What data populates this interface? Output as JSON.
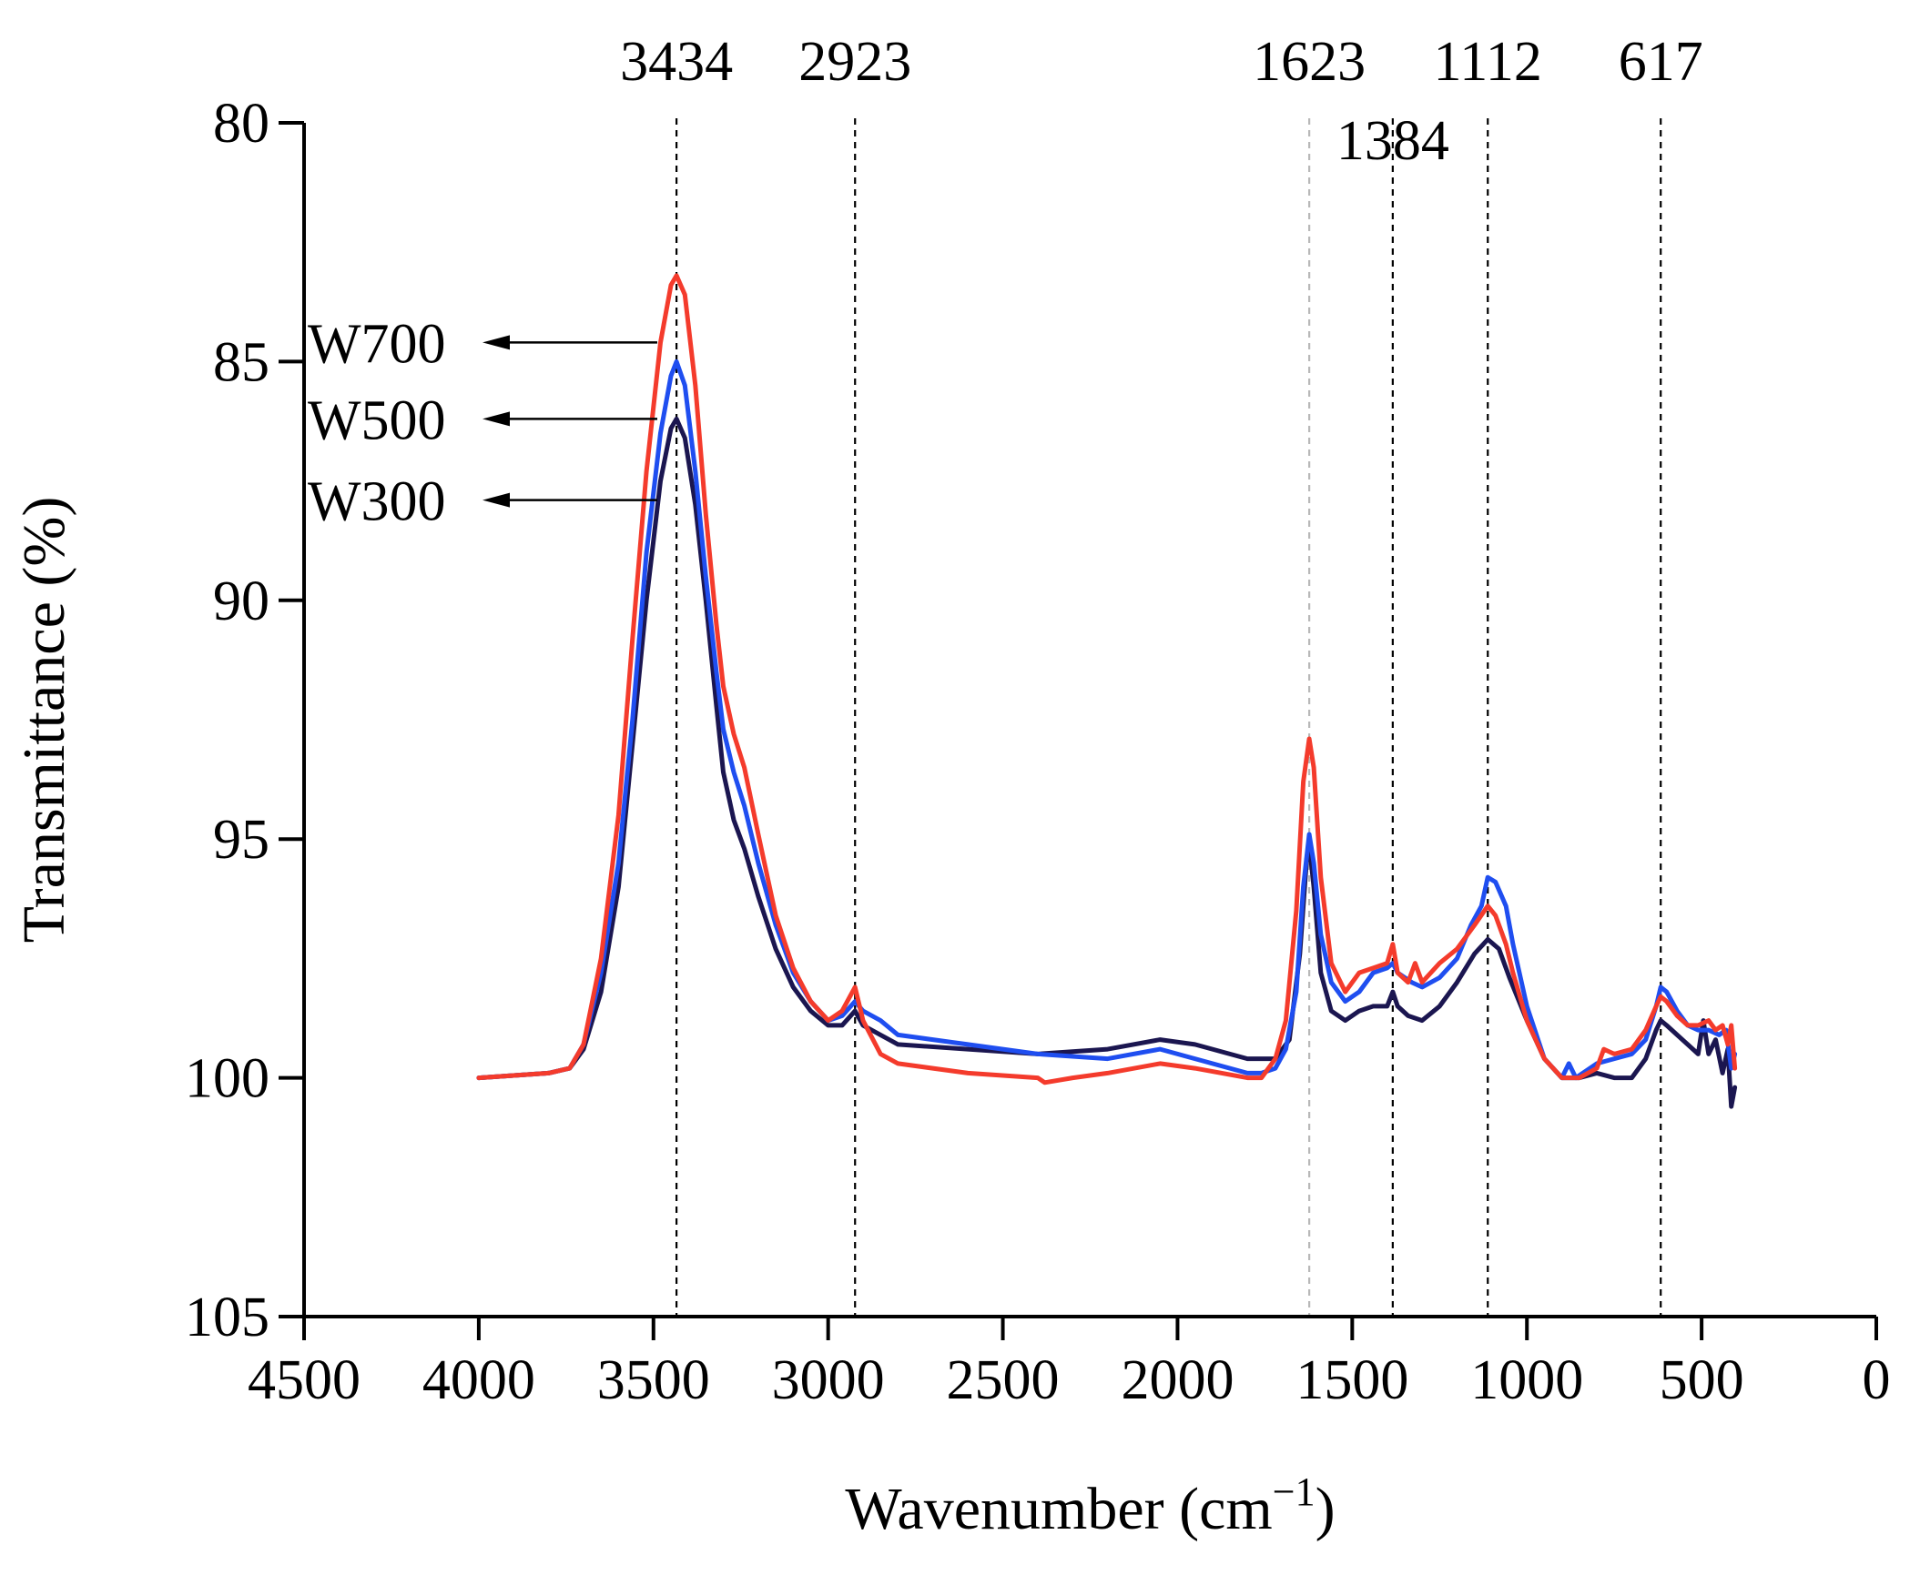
{
  "chart_data": {
    "type": "line",
    "title": "",
    "xlabel_main": "Wavenumber (cm",
    "xlabel_sup": "−1",
    "xlabel_close": ")",
    "ylabel": "Transmittance (%)",
    "xlim": [
      4500,
      0
    ],
    "ylim": [
      80,
      105
    ],
    "y_inverted": true,
    "x_ticks": [
      4500,
      4000,
      3500,
      3000,
      2500,
      2000,
      1500,
      1000,
      500,
      0
    ],
    "y_ticks": [
      80,
      85,
      90,
      95,
      100,
      105
    ],
    "peaks": [
      {
        "label": "3434",
        "x": 3434,
        "style": "dark"
      },
      {
        "label": "2923",
        "x": 2923,
        "style": "dark"
      },
      {
        "label": "1623",
        "x": 1623,
        "style": "light"
      },
      {
        "label": "1384",
        "x": 1384,
        "style": "dark"
      },
      {
        "label": "1112",
        "x": 1112,
        "style": "dark"
      },
      {
        "label": "617",
        "x": 617,
        "style": "dark"
      }
    ],
    "series": [
      {
        "name": "W300",
        "color": "#1b1650",
        "label_y": 87.9,
        "points": [
          [
            4000,
            100.0
          ],
          [
            3800,
            99.9
          ],
          [
            3740,
            99.8
          ],
          [
            3700,
            99.4
          ],
          [
            3650,
            98.2
          ],
          [
            3600,
            96.0
          ],
          [
            3560,
            93.0
          ],
          [
            3520,
            90.0
          ],
          [
            3480,
            87.5
          ],
          [
            3450,
            86.4
          ],
          [
            3434,
            86.2
          ],
          [
            3410,
            86.6
          ],
          [
            3380,
            88.0
          ],
          [
            3350,
            90.0
          ],
          [
            3320,
            92.2
          ],
          [
            3300,
            93.6
          ],
          [
            3270,
            94.6
          ],
          [
            3240,
            95.2
          ],
          [
            3200,
            96.2
          ],
          [
            3150,
            97.3
          ],
          [
            3100,
            98.1
          ],
          [
            3050,
            98.6
          ],
          [
            3000,
            98.9
          ],
          [
            2960,
            98.9
          ],
          [
            2923,
            98.6
          ],
          [
            2900,
            98.9
          ],
          [
            2850,
            99.1
          ],
          [
            2800,
            99.3
          ],
          [
            2600,
            99.4
          ],
          [
            2400,
            99.5
          ],
          [
            2200,
            99.4
          ],
          [
            2050,
            99.2
          ],
          [
            1950,
            99.3
          ],
          [
            1800,
            99.6
          ],
          [
            1720,
            99.6
          ],
          [
            1680,
            99.2
          ],
          [
            1650,
            97.4
          ],
          [
            1630,
            95.4
          ],
          [
            1623,
            95.1
          ],
          [
            1610,
            96.0
          ],
          [
            1590,
            97.8
          ],
          [
            1560,
            98.6
          ],
          [
            1520,
            98.8
          ],
          [
            1480,
            98.6
          ],
          [
            1440,
            98.5
          ],
          [
            1400,
            98.5
          ],
          [
            1384,
            98.2
          ],
          [
            1370,
            98.5
          ],
          [
            1340,
            98.7
          ],
          [
            1300,
            98.8
          ],
          [
            1250,
            98.5
          ],
          [
            1200,
            98.0
          ],
          [
            1150,
            97.4
          ],
          [
            1112,
            97.1
          ],
          [
            1080,
            97.3
          ],
          [
            1050,
            97.9
          ],
          [
            1000,
            98.8
          ],
          [
            950,
            99.6
          ],
          [
            900,
            100.0
          ],
          [
            850,
            100.0
          ],
          [
            800,
            99.9
          ],
          [
            750,
            100.0
          ],
          [
            700,
            100.0
          ],
          [
            660,
            99.6
          ],
          [
            630,
            99.0
          ],
          [
            617,
            98.8
          ],
          [
            600,
            98.9
          ],
          [
            570,
            99.1
          ],
          [
            540,
            99.3
          ],
          [
            510,
            99.5
          ],
          [
            495,
            98.8
          ],
          [
            480,
            99.5
          ],
          [
            460,
            99.2
          ],
          [
            440,
            99.9
          ],
          [
            425,
            99.4
          ],
          [
            415,
            100.6
          ],
          [
            405,
            100.2
          ]
        ]
      },
      {
        "name": "W500",
        "color": "#1f4ef0",
        "label_y": 86.2,
        "points": [
          [
            4000,
            100.0
          ],
          [
            3800,
            99.9
          ],
          [
            3740,
            99.8
          ],
          [
            3700,
            99.3
          ],
          [
            3650,
            97.8
          ],
          [
            3600,
            95.5
          ],
          [
            3560,
            92.5
          ],
          [
            3520,
            89.0
          ],
          [
            3480,
            86.5
          ],
          [
            3450,
            85.3
          ],
          [
            3434,
            85.0
          ],
          [
            3410,
            85.5
          ],
          [
            3380,
            87.3
          ],
          [
            3350,
            89.5
          ],
          [
            3320,
            91.5
          ],
          [
            3300,
            92.7
          ],
          [
            3270,
            93.6
          ],
          [
            3240,
            94.3
          ],
          [
            3200,
            95.5
          ],
          [
            3150,
            96.8
          ],
          [
            3100,
            97.8
          ],
          [
            3050,
            98.4
          ],
          [
            3000,
            98.8
          ],
          [
            2960,
            98.7
          ],
          [
            2923,
            98.4
          ],
          [
            2900,
            98.6
          ],
          [
            2850,
            98.8
          ],
          [
            2800,
            99.1
          ],
          [
            2600,
            99.3
          ],
          [
            2400,
            99.5
          ],
          [
            2200,
            99.6
          ],
          [
            2050,
            99.4
          ],
          [
            1950,
            99.6
          ],
          [
            1800,
            99.9
          ],
          [
            1760,
            99.9
          ],
          [
            1720,
            99.8
          ],
          [
            1690,
            99.4
          ],
          [
            1660,
            98.2
          ],
          [
            1640,
            96.0
          ],
          [
            1623,
            94.9
          ],
          [
            1610,
            95.5
          ],
          [
            1590,
            97.0
          ],
          [
            1560,
            98.0
          ],
          [
            1520,
            98.4
          ],
          [
            1480,
            98.2
          ],
          [
            1440,
            97.8
          ],
          [
            1400,
            97.7
          ],
          [
            1384,
            97.6
          ],
          [
            1370,
            97.8
          ],
          [
            1330,
            98.0
          ],
          [
            1300,
            98.1
          ],
          [
            1250,
            97.9
          ],
          [
            1200,
            97.5
          ],
          [
            1160,
            96.8
          ],
          [
            1130,
            96.4
          ],
          [
            1112,
            95.8
          ],
          [
            1090,
            95.9
          ],
          [
            1060,
            96.4
          ],
          [
            1040,
            97.2
          ],
          [
            1000,
            98.5
          ],
          [
            950,
            99.6
          ],
          [
            900,
            100.0
          ],
          [
            880,
            99.7
          ],
          [
            860,
            100.0
          ],
          [
            800,
            99.7
          ],
          [
            750,
            99.6
          ],
          [
            700,
            99.5
          ],
          [
            660,
            99.2
          ],
          [
            630,
            98.5
          ],
          [
            617,
            98.1
          ],
          [
            600,
            98.2
          ],
          [
            570,
            98.6
          ],
          [
            540,
            98.9
          ],
          [
            510,
            99.0
          ],
          [
            480,
            99.0
          ],
          [
            450,
            99.1
          ],
          [
            430,
            99.0
          ],
          [
            415,
            99.8
          ],
          [
            405,
            99.5
          ]
        ]
      },
      {
        "name": "W700",
        "color": "#f43b2c",
        "label_y": 84.6,
        "points": [
          [
            4000,
            100.0
          ],
          [
            3800,
            99.9
          ],
          [
            3740,
            99.8
          ],
          [
            3700,
            99.3
          ],
          [
            3650,
            97.5
          ],
          [
            3600,
            94.5
          ],
          [
            3560,
            90.8
          ],
          [
            3520,
            87.3
          ],
          [
            3480,
            84.6
          ],
          [
            3450,
            83.4
          ],
          [
            3434,
            83.2
          ],
          [
            3410,
            83.6
          ],
          [
            3380,
            85.5
          ],
          [
            3350,
            88.2
          ],
          [
            3320,
            90.5
          ],
          [
            3300,
            91.8
          ],
          [
            3270,
            92.8
          ],
          [
            3240,
            93.5
          ],
          [
            3200,
            94.9
          ],
          [
            3150,
            96.6
          ],
          [
            3100,
            97.7
          ],
          [
            3050,
            98.4
          ],
          [
            3000,
            98.8
          ],
          [
            2960,
            98.6
          ],
          [
            2923,
            98.1
          ],
          [
            2900,
            98.8
          ],
          [
            2850,
            99.5
          ],
          [
            2800,
            99.7
          ],
          [
            2600,
            99.9
          ],
          [
            2400,
            100.0
          ],
          [
            2380,
            100.1
          ],
          [
            2300,
            100.0
          ],
          [
            2200,
            99.9
          ],
          [
            2050,
            99.7
          ],
          [
            1950,
            99.8
          ],
          [
            1800,
            100.0
          ],
          [
            1760,
            100.0
          ],
          [
            1720,
            99.6
          ],
          [
            1690,
            98.8
          ],
          [
            1660,
            96.5
          ],
          [
            1640,
            93.8
          ],
          [
            1623,
            92.9
          ],
          [
            1610,
            93.5
          ],
          [
            1590,
            95.8
          ],
          [
            1560,
            97.6
          ],
          [
            1520,
            98.2
          ],
          [
            1480,
            97.8
          ],
          [
            1440,
            97.7
          ],
          [
            1400,
            97.6
          ],
          [
            1384,
            97.2
          ],
          [
            1370,
            97.8
          ],
          [
            1340,
            98.0
          ],
          [
            1320,
            97.6
          ],
          [
            1300,
            98.0
          ],
          [
            1250,
            97.6
          ],
          [
            1200,
            97.3
          ],
          [
            1150,
            96.8
          ],
          [
            1112,
            96.4
          ],
          [
            1090,
            96.6
          ],
          [
            1060,
            97.2
          ],
          [
            1040,
            97.8
          ],
          [
            1000,
            98.8
          ],
          [
            950,
            99.6
          ],
          [
            900,
            100.0
          ],
          [
            850,
            100.0
          ],
          [
            800,
            99.8
          ],
          [
            780,
            99.4
          ],
          [
            750,
            99.5
          ],
          [
            700,
            99.4
          ],
          [
            660,
            99.0
          ],
          [
            630,
            98.5
          ],
          [
            617,
            98.3
          ],
          [
            600,
            98.4
          ],
          [
            570,
            98.7
          ],
          [
            540,
            98.9
          ],
          [
            510,
            98.9
          ],
          [
            480,
            98.8
          ],
          [
            460,
            99.0
          ],
          [
            440,
            98.9
          ],
          [
            425,
            99.3
          ],
          [
            415,
            98.9
          ],
          [
            405,
            99.8
          ]
        ]
      }
    ]
  }
}
